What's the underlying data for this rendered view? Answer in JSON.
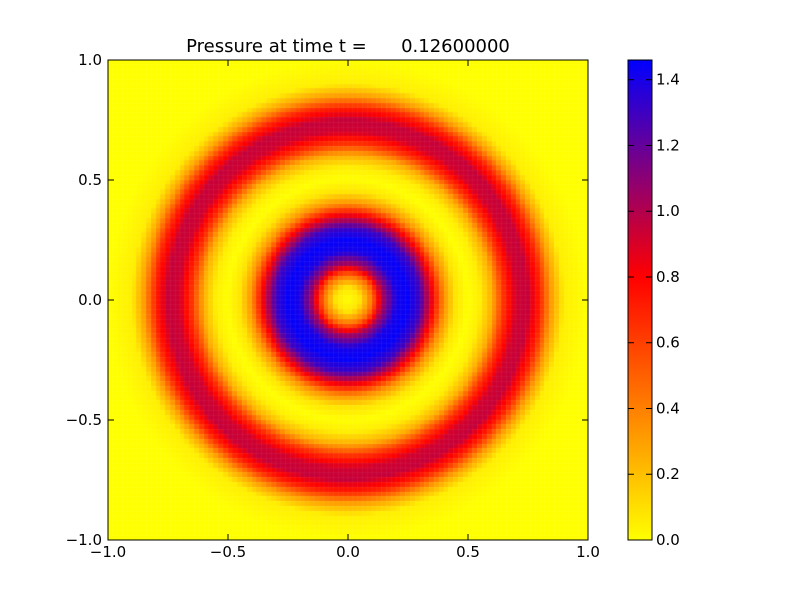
{
  "chart_data": {
    "type": "heatmap",
    "title": "Pressure at time t =      0.12600000",
    "xlabel": "",
    "ylabel": "",
    "xlim": [
      -1.0,
      1.0
    ],
    "ylim": [
      -1.0,
      1.0
    ],
    "x_ticks": [
      "−1.0",
      "−0.5",
      "0.0",
      "0.5",
      "1.0"
    ],
    "y_ticks": [
      "−1.0",
      "−0.5",
      "0.0",
      "0.5",
      "1.0"
    ],
    "grid_resolution": [
      100,
      100
    ],
    "field": {
      "description": "radially symmetric pressure field p(r), r = sqrt(x^2+y^2)",
      "r": [
        0.0,
        0.05,
        0.1,
        0.15,
        0.2,
        0.25,
        0.3,
        0.35,
        0.4,
        0.45,
        0.5,
        0.55,
        0.6,
        0.65,
        0.7,
        0.75,
        0.8,
        0.85,
        0.9,
        1.0,
        1.45
      ],
      "p": [
        0.0,
        0.08,
        0.45,
        1.05,
        1.4,
        1.45,
        1.3,
        0.85,
        0.35,
        0.08,
        0.0,
        0.05,
        0.25,
        0.65,
        0.92,
        0.95,
        0.7,
        0.3,
        0.05,
        0.0,
        0.0
      ]
    },
    "colorbar": {
      "range": [
        0.0,
        1.46
      ],
      "ticks": [
        "0.0",
        "0.2",
        "0.4",
        "0.6",
        "0.8",
        "1.0",
        "1.2",
        "1.4"
      ],
      "tick_values": [
        0.0,
        0.2,
        0.4,
        0.6,
        0.8,
        1.0,
        1.2,
        1.4
      ],
      "colormap_stops": [
        {
          "value": 0.0,
          "color": "#ffff00"
        },
        {
          "value": 0.8,
          "color": "#ff0000"
        },
        {
          "value": 1.46,
          "color": "#0000ff"
        }
      ]
    },
    "grid": false,
    "legend": "colorbar-right"
  }
}
